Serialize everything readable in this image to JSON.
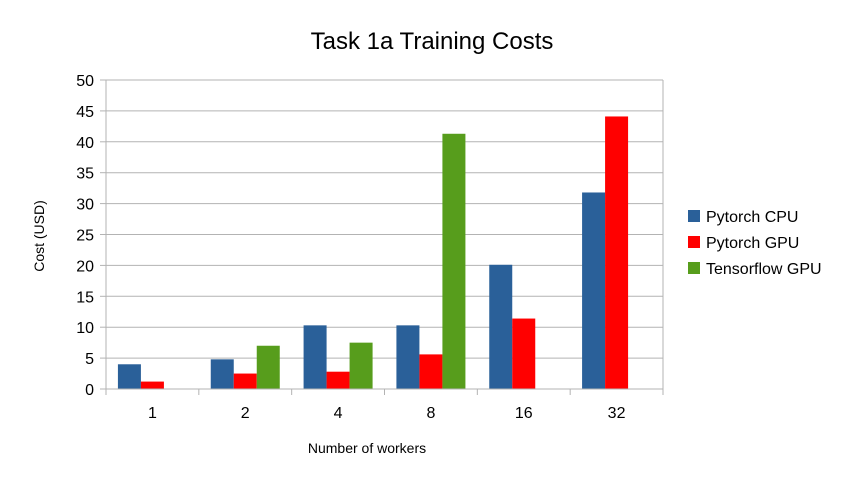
{
  "chart_data": {
    "type": "bar",
    "title": "Task 1a Training Costs",
    "xlabel": "Number of workers",
    "ylabel": "Cost (USD)",
    "categories": [
      "1",
      "2",
      "4",
      "8",
      "16",
      "32"
    ],
    "ylim": [
      0,
      50
    ],
    "yticks": [
      0,
      5,
      10,
      15,
      20,
      25,
      30,
      35,
      40,
      45,
      50
    ],
    "grid": true,
    "legend_position": "right",
    "series": [
      {
        "name": "Pytorch CPU",
        "color": "#2A6099",
        "values": [
          4.0,
          4.8,
          10.3,
          10.3,
          20.1,
          31.8
        ]
      },
      {
        "name": "Pytorch GPU",
        "color": "#FF0000",
        "values": [
          1.2,
          2.5,
          2.8,
          5.6,
          11.4,
          44.1
        ]
      },
      {
        "name": "Tensorflow GPU",
        "color": "#579D1C",
        "values": [
          null,
          7.0,
          7.5,
          41.3,
          null,
          null
        ]
      }
    ]
  }
}
